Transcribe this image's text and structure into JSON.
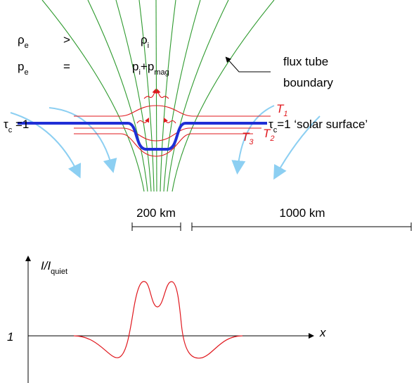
{
  "density_relation": {
    "outside": "ρ",
    "outside_sub": "e",
    "relation": ">",
    "inside": "ρ",
    "inside_sub": "i"
  },
  "pressure_relation": {
    "outside": "p",
    "outside_sub": "e",
    "relation": "=",
    "inside": "p",
    "inside_sub": "i",
    "plus": "+p",
    "plus_sub": "mag"
  },
  "flux_tube_label": [
    "flux tube",
    "boundary"
  ],
  "optical_depth_left": {
    "symbol": "τ",
    "sub": "c",
    "rest": " =1"
  },
  "optical_depth_right": {
    "symbol": "τ",
    "sub": "c",
    "rest": "=1 ‘solar surface’"
  },
  "temperatures": [
    {
      "symbol": "T",
      "sub": "1"
    },
    {
      "symbol": "T",
      "sub": "2"
    },
    {
      "symbol": "T",
      "sub": "3"
    }
  ],
  "scales": [
    "200 km",
    "1000 km"
  ],
  "intensity_plot": {
    "y_label": "I/I",
    "y_label_sub": "quiet",
    "level_label": 1,
    "x_label": "x"
  }
}
